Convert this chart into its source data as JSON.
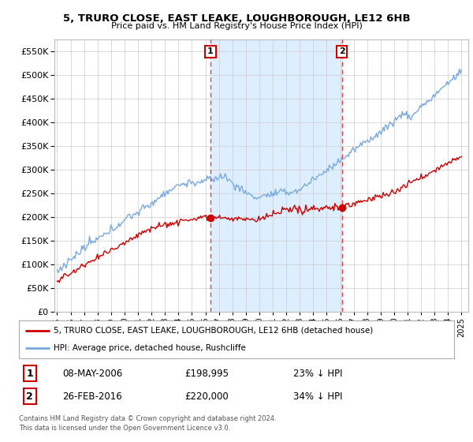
{
  "title1": "5, TRURO CLOSE, EAST LEAKE, LOUGHBOROUGH, LE12 6HB",
  "title2": "Price paid vs. HM Land Registry's House Price Index (HPI)",
  "ytick_values": [
    0,
    50000,
    100000,
    150000,
    200000,
    250000,
    300000,
    350000,
    400000,
    450000,
    500000,
    550000
  ],
  "ylim": [
    0,
    575000
  ],
  "xlim_start": 1994.8,
  "xlim_end": 2025.5,
  "hpi_color": "#7aaadd",
  "hpi_fill_color": "#ddeeff",
  "price_color": "#cc0000",
  "vline1_color": "#dd4444",
  "vline2_color": "#dd4444",
  "marker1_year": 2006.37,
  "marker2_year": 2016.12,
  "sale1_price_val": 198995,
  "sale2_price_val": 220000,
  "sale1_date": "08-MAY-2006",
  "sale1_price": "£198,995",
  "sale1_hpi": "23% ↓ HPI",
  "sale2_date": "26-FEB-2016",
  "sale2_price": "£220,000",
  "sale2_hpi": "34% ↓ HPI",
  "legend_label1": "5, TRURO CLOSE, EAST LEAKE, LOUGHBOROUGH, LE12 6HB (detached house)",
  "legend_label2": "HPI: Average price, detached house, Rushcliffe",
  "footer1": "Contains HM Land Registry data © Crown copyright and database right 2024.",
  "footer2": "This data is licensed under the Open Government Licence v3.0.",
  "bg_color": "#ffffff",
  "grid_color": "#cccccc",
  "xtick_years": [
    1995,
    1996,
    1997,
    1998,
    1999,
    2000,
    2001,
    2002,
    2003,
    2004,
    2005,
    2006,
    2007,
    2008,
    2009,
    2010,
    2011,
    2012,
    2013,
    2014,
    2015,
    2016,
    2017,
    2018,
    2019,
    2020,
    2021,
    2022,
    2023,
    2024,
    2025
  ]
}
